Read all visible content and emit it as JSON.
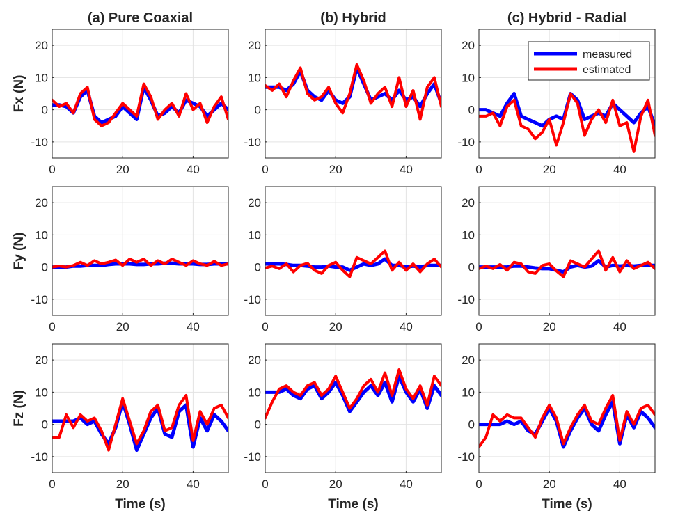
{
  "figure": {
    "columns": [
      "(a) Pure Coaxial",
      "(b) Hybrid",
      "(c) Hybrid - Radial"
    ],
    "rows": [
      "Fx (N)",
      "Fy (N)",
      "Fz (N)"
    ],
    "xlabel": "Time (s)"
  },
  "chart_data": {
    "type": "line",
    "layout": "3x3 grid",
    "x_ticks": [
      "0",
      "20",
      "40"
    ],
    "y_ticks": [
      "20",
      "10",
      "0",
      "-10"
    ],
    "xlim": [
      0,
      50
    ],
    "ylim": [
      -15,
      25
    ],
    "grid": true,
    "legend": {
      "placement": "top-right",
      "panel": "Fx (N) / (c) Hybrid - Radial",
      "entries": [
        {
          "name": "measured",
          "color": "#0000ff"
        },
        {
          "name": "estimated",
          "color": "#ff0000"
        }
      ]
    },
    "x": [
      0,
      2,
      4,
      6,
      8,
      10,
      12,
      14,
      16,
      18,
      20,
      22,
      24,
      26,
      28,
      30,
      32,
      34,
      36,
      38,
      40,
      42,
      44,
      46,
      48,
      50
    ],
    "panels": [
      {
        "row": "Fx (N)",
        "column": "(a) Pure Coaxial",
        "series": [
          {
            "name": "measured",
            "values": [
              1.5,
              1.5,
              1,
              -1,
              4,
              6,
              -2,
              -4,
              -3,
              -2,
              1,
              -1,
              -3,
              7,
              3,
              -2,
              -1,
              1,
              -1,
              3,
              2,
              1,
              -2,
              0,
              2,
              0
            ]
          },
          {
            "name": "estimated",
            "values": [
              3,
              1,
              2,
              -1,
              5,
              7,
              -3,
              -5,
              -4,
              -1,
              2,
              0,
              -2,
              8,
              4,
              -3,
              0,
              2,
              -2,
              5,
              0,
              2,
              -4,
              1,
              4,
              -3
            ]
          }
        ]
      },
      {
        "row": "Fx (N)",
        "column": "(b) Hybrid",
        "series": [
          {
            "name": "measured",
            "values": [
              7,
              7,
              7,
              6,
              8,
              12,
              6,
              4,
              3,
              6,
              3,
              2,
              4,
              13,
              8,
              3,
              4,
              5,
              3,
              6,
              3,
              4,
              1,
              5,
              8,
              2
            ]
          },
          {
            "name": "estimated",
            "values": [
              7.5,
              6,
              8,
              4,
              9,
              13,
              5,
              3,
              4,
              7,
              2,
              -1,
              5,
              14,
              9,
              2,
              5,
              7,
              1,
              10,
              1,
              6,
              -3,
              7,
              10,
              1
            ]
          }
        ]
      },
      {
        "row": "Fx (N)",
        "column": "(c) Hybrid - Radial",
        "series": [
          {
            "name": "measured",
            "values": [
              0,
              0,
              -1,
              -2,
              2,
              5,
              -2,
              -3,
              -4,
              -5,
              -3,
              -2,
              -3,
              5,
              3,
              -3,
              -2,
              -1,
              -2,
              2,
              0,
              -2,
              -4,
              -1,
              1,
              -5
            ]
          },
          {
            "name": "estimated",
            "values": [
              -2,
              -2,
              -1,
              -5,
              1,
              3,
              -5,
              -6,
              -9,
              -7,
              -3,
              -11,
              -4,
              5,
              2,
              -8,
              -3,
              0,
              -4,
              3,
              -5,
              -4,
              -13,
              -2,
              3,
              -8
            ]
          }
        ]
      },
      {
        "row": "Fy (N)",
        "column": "(a) Pure Coaxial",
        "series": [
          {
            "name": "measured",
            "values": [
              0,
              0,
              0,
              0.3,
              0.3,
              0.5,
              0.5,
              0.5,
              0.8,
              1,
              1,
              1,
              0.8,
              0.8,
              1,
              1,
              1.2,
              1.2,
              1,
              1,
              1,
              0.8,
              0.8,
              1,
              1,
              1
            ]
          },
          {
            "name": "estimated",
            "values": [
              0,
              0.3,
              0,
              0.5,
              1.5,
              0.5,
              2,
              1,
              1.5,
              2.2,
              0.5,
              2.5,
              1.5,
              2.5,
              0.5,
              2,
              1,
              2.5,
              1.5,
              0.5,
              2,
              1,
              0.5,
              1.8,
              0.5,
              1
            ]
          }
        ]
      },
      {
        "row": "Fy (N)",
        "column": "(b) Hybrid",
        "series": [
          {
            "name": "measured",
            "values": [
              1,
              1,
              1,
              0.8,
              0.5,
              0.5,
              0.3,
              0,
              0,
              0.3,
              0,
              0,
              -1,
              0,
              1,
              0.5,
              1,
              2.5,
              0.5,
              0.5,
              0,
              0.3,
              0,
              0.5,
              0.5,
              0.5
            ]
          },
          {
            "name": "estimated",
            "values": [
              -0.3,
              0.3,
              -0.5,
              1,
              -1.5,
              0.5,
              1.2,
              -1,
              -2,
              0.5,
              1.5,
              -1,
              -3,
              3,
              2,
              1,
              3,
              5,
              -1,
              1.5,
              -1,
              1,
              -1.5,
              1,
              2.5,
              0
            ]
          }
        ]
      },
      {
        "row": "Fy (N)",
        "column": "(c) Hybrid - Radial",
        "series": [
          {
            "name": "measured",
            "values": [
              0,
              0,
              0,
              0,
              0,
              0.3,
              0.3,
              0,
              -0.3,
              -0.5,
              -0.5,
              -1,
              -1.5,
              0,
              0.5,
              0,
              0.3,
              2,
              0,
              0.5,
              0.3,
              0.5,
              0.3,
              0.5,
              0.5,
              0.5
            ]
          },
          {
            "name": "estimated",
            "values": [
              -0.5,
              0.3,
              -0.5,
              0.8,
              -1,
              1.5,
              1,
              -1.5,
              -2,
              0.5,
              1,
              -1.2,
              -3,
              2,
              1,
              0,
              2.5,
              5,
              -1,
              3,
              -1.5,
              2,
              -0.5,
              0.5,
              1.5,
              -0.5
            ]
          }
        ]
      },
      {
        "row": "Fz (N)",
        "column": "(a) Pure Coaxial",
        "series": [
          {
            "name": "measured",
            "values": [
              1,
              1,
              1,
              1,
              2,
              0,
              1,
              -3,
              -6,
              -1,
              7,
              0,
              -8,
              -3,
              2,
              5,
              -3,
              -4,
              4,
              6,
              -7,
              2,
              -2,
              3,
              1,
              -2
            ]
          },
          {
            "name": "estimated",
            "values": [
              -4,
              -4,
              3,
              -1,
              3,
              1,
              2,
              -2,
              -8,
              0,
              8,
              1,
              -6,
              -2,
              4,
              6,
              -2,
              -1,
              6,
              9,
              -5,
              4,
              0,
              5,
              6,
              2
            ]
          }
        ]
      },
      {
        "row": "Fz (N)",
        "column": "(b) Hybrid",
        "series": [
          {
            "name": "measured",
            "values": [
              10,
              10,
              10,
              11,
              9,
              8,
              11,
              12,
              8,
              10,
              13,
              9,
              4,
              7,
              10,
              12,
              9,
              13,
              7,
              15,
              10,
              7,
              11,
              5,
              12,
              9
            ]
          },
          {
            "name": "estimated",
            "values": [
              2,
              7,
              11,
              12,
              10,
              9,
              12,
              13,
              9,
              11,
              15,
              10,
              5,
              8,
              12,
              14,
              10,
              16,
              9,
              17,
              11,
              8,
              12,
              6,
              15,
              12
            ]
          }
        ]
      },
      {
        "row": "Fz (N)",
        "column": "(c) Hybrid - Radial",
        "series": [
          {
            "name": "measured",
            "values": [
              0,
              0,
              0,
              0,
              1,
              0,
              1,
              -2,
              -3,
              1,
              5,
              1,
              -7,
              -2,
              2,
              5,
              0,
              -2,
              3,
              7,
              -6,
              3,
              -1,
              4,
              2,
              -1
            ]
          },
          {
            "name": "estimated",
            "values": [
              -7,
              -4,
              3,
              1,
              3,
              2,
              2,
              -1,
              -4,
              2,
              6,
              2,
              -6,
              -1,
              3,
              6,
              1,
              0,
              5,
              9,
              -5,
              4,
              0,
              5,
              6,
              3
            ]
          }
        ]
      }
    ]
  }
}
